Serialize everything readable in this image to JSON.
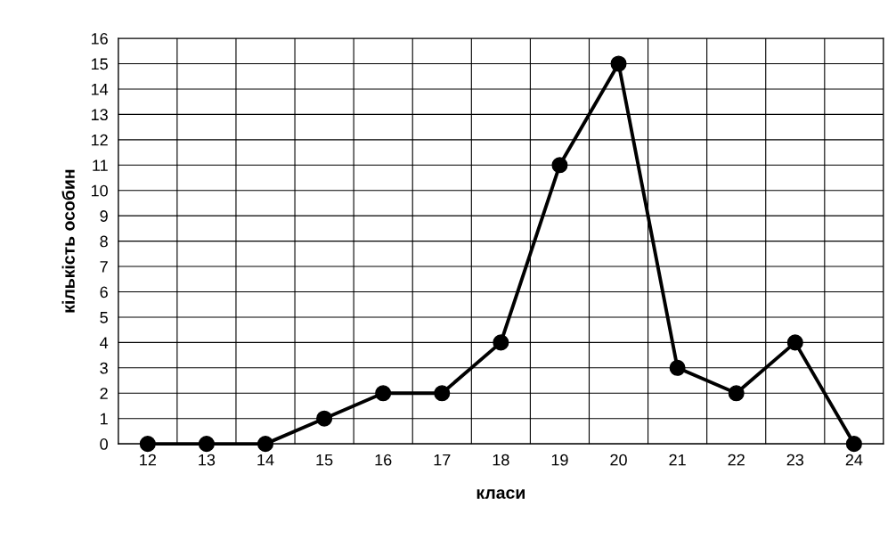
{
  "chart_data": {
    "type": "line",
    "xlabel": "класи",
    "ylabel": "кількість особин",
    "categories": [
      "12",
      "13",
      "14",
      "15",
      "16",
      "17",
      "18",
      "19",
      "20",
      "21",
      "22",
      "23",
      "24"
    ],
    "series": [
      {
        "color": "#000000",
        "values": [
          0,
          0,
          0,
          1,
          2,
          2,
          4,
          11,
          15,
          3,
          2,
          4,
          0
        ]
      }
    ],
    "ylim": [
      0,
      16
    ],
    "yticks": [
      0,
      1,
      2,
      3,
      4,
      5,
      6,
      7,
      8,
      9,
      10,
      11,
      12,
      13,
      14,
      15,
      16
    ],
    "grid": true,
    "marker": "circle",
    "line_style": "solid",
    "legend": false
  }
}
